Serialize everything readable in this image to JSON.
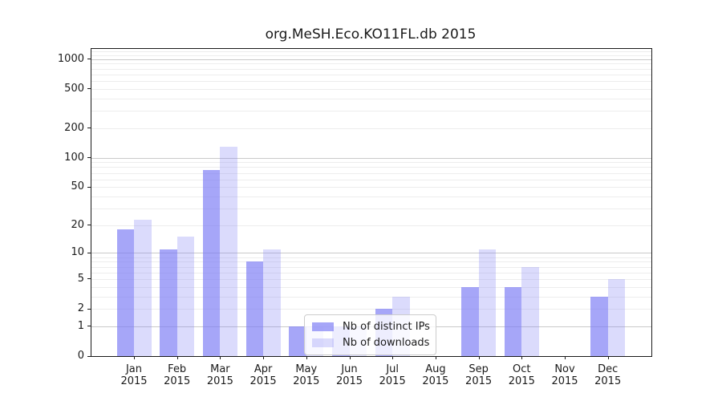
{
  "chart_data": {
    "type": "bar",
    "title": "org.MeSH.Eco.KO11FL.db 2015",
    "year": "2015",
    "categories": [
      "Jan",
      "Feb",
      "Mar",
      "Apr",
      "May",
      "Jun",
      "Jul",
      "Aug",
      "Sep",
      "Oct",
      "Nov",
      "Dec"
    ],
    "series": [
      {
        "name": "Nb of distinct IPs",
        "color": "rgba(124,124,244,0.68)",
        "values": [
          18,
          11,
          75,
          8,
          1,
          1,
          2,
          0,
          4,
          4,
          0,
          3
        ]
      },
      {
        "name": "Nb of downloads",
        "color": "rgba(124,124,244,0.28)",
        "values": [
          23,
          15,
          130,
          11,
          1,
          1,
          3,
          0,
          11,
          7,
          0,
          5
        ]
      }
    ],
    "yscale": "log(1+x)",
    "ylim": [
      0,
      1265
    ],
    "yticks": [
      0,
      1,
      2,
      5,
      10,
      20,
      50,
      100,
      200,
      500,
      1000
    ],
    "ygrid_major": [
      1,
      10,
      100,
      1000
    ],
    "ygrid_minor": [
      2,
      3,
      4,
      5,
      6,
      7,
      8,
      9,
      20,
      30,
      40,
      50,
      60,
      70,
      80,
      90,
      200,
      300,
      400,
      500,
      600,
      700,
      800,
      900,
      1100,
      1200
    ],
    "legend_position": "lower center",
    "grid": true,
    "colors": {
      "axis": "#1a1a1a",
      "grid_major": "#c9c9c9",
      "grid_minor": "#ededed",
      "bar_dark": "rgba(124,124,244,0.68)",
      "bar_light": "rgba(124,124,244,0.28)"
    }
  }
}
